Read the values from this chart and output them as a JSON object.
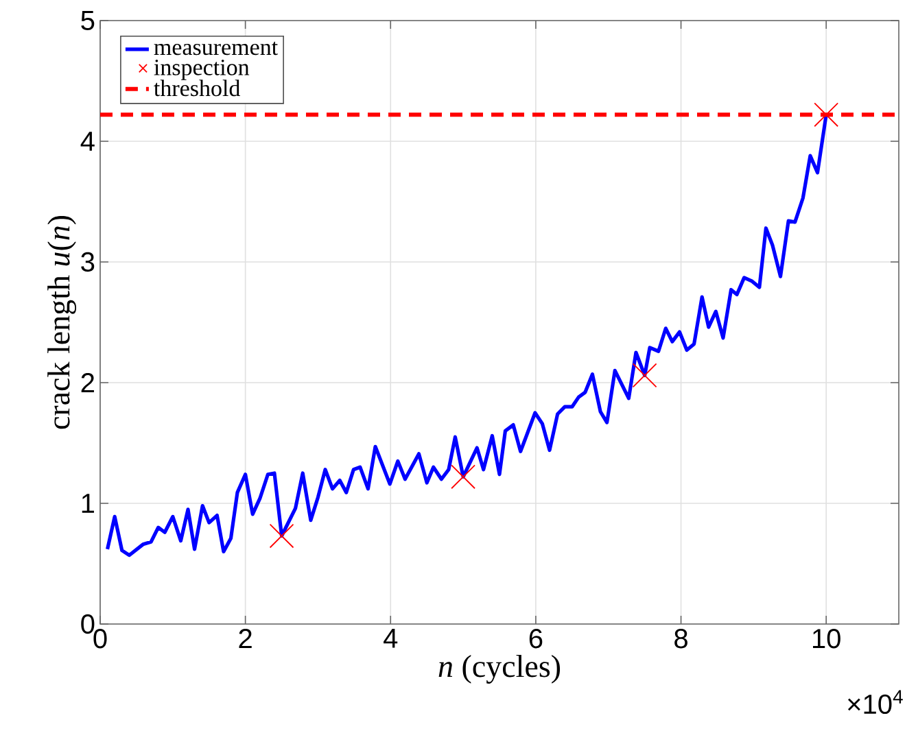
{
  "chart_data": {
    "type": "line",
    "xlabel": "*n* (cycles)",
    "ylabel": "crack length *u*(*n*)",
    "xlim": [
      0,
      11
    ],
    "xticks": [
      0,
      2,
      4,
      6,
      8,
      10
    ],
    "ylim": [
      0,
      5
    ],
    "yticks": [
      0,
      1,
      2,
      3,
      4,
      5
    ],
    "grid": true,
    "legend": "top left",
    "annotations": [
      "×10$^{4}$"
    ],
    "series": [
      {
        "name": "measurement",
        "color": "#0000ff",
        "marker": "none",
        "line_style": "solid",
        "x": [
          0.1,
          0.2,
          0.3,
          0.4,
          0.59,
          0.7,
          0.8,
          0.89,
          1.0,
          1.11,
          1.21,
          1.3,
          1.41,
          1.5,
          1.61,
          1.7,
          1.8,
          1.89,
          2.0,
          2.1,
          2.2,
          2.31,
          2.4,
          2.5,
          2.69,
          2.79,
          2.9,
          3.0,
          3.1,
          3.2,
          3.3,
          3.39,
          3.49,
          3.58,
          3.69,
          3.79,
          3.99,
          4.1,
          4.2,
          4.39,
          4.5,
          4.59,
          4.7,
          4.8,
          4.89,
          5.0,
          5.19,
          5.28,
          5.4,
          5.5,
          5.58,
          5.69,
          5.79,
          5.99,
          6.09,
          6.19,
          6.3,
          6.4,
          6.5,
          6.59,
          6.68,
          6.78,
          6.89,
          6.98,
          7.09,
          7.28,
          7.38,
          7.5,
          7.57,
          7.69,
          7.79,
          7.88,
          7.98,
          8.08,
          8.18,
          8.29,
          8.38,
          8.48,
          8.58,
          8.69,
          8.77,
          8.87,
          8.98,
          9.08,
          9.17,
          9.26,
          9.37,
          9.48,
          9.57,
          9.68,
          9.78,
          9.88,
          10.0
        ],
        "values": [
          0.62,
          0.89,
          0.61,
          0.57,
          0.66,
          0.68,
          0.8,
          0.76,
          0.89,
          0.69,
          0.95,
          0.62,
          0.98,
          0.84,
          0.9,
          0.6,
          0.71,
          1.09,
          1.24,
          0.91,
          1.04,
          1.24,
          1.25,
          0.73,
          0.96,
          1.25,
          0.86,
          1.05,
          1.28,
          1.12,
          1.19,
          1.09,
          1.28,
          1.3,
          1.12,
          1.47,
          1.16,
          1.35,
          1.2,
          1.41,
          1.17,
          1.3,
          1.2,
          1.28,
          1.55,
          1.22,
          1.46,
          1.28,
          1.56,
          1.24,
          1.6,
          1.65,
          1.43,
          1.75,
          1.66,
          1.44,
          1.74,
          1.8,
          1.8,
          1.88,
          1.92,
          2.07,
          1.76,
          1.67,
          2.1,
          1.87,
          2.25,
          2.06,
          2.29,
          2.26,
          2.45,
          2.34,
          2.42,
          2.27,
          2.32,
          2.71,
          2.46,
          2.59,
          2.37,
          2.77,
          2.73,
          2.87,
          2.84,
          2.79,
          3.28,
          3.14,
          2.88,
          3.34,
          3.33,
          3.53,
          3.88,
          3.74,
          4.22
        ]
      },
      {
        "name": "inspection",
        "type": "scatter",
        "color": "#ff0000",
        "marker": "cross",
        "x": [
          2.5,
          5.0,
          7.5,
          10.0
        ],
        "values": [
          0.73,
          1.22,
          2.06,
          4.22
        ]
      }
    ],
    "ref_lines": [
      {
        "axis": "y",
        "value": 4.22,
        "label": "threshold",
        "color": "#ff0000",
        "line_style": "dashed"
      }
    ]
  }
}
